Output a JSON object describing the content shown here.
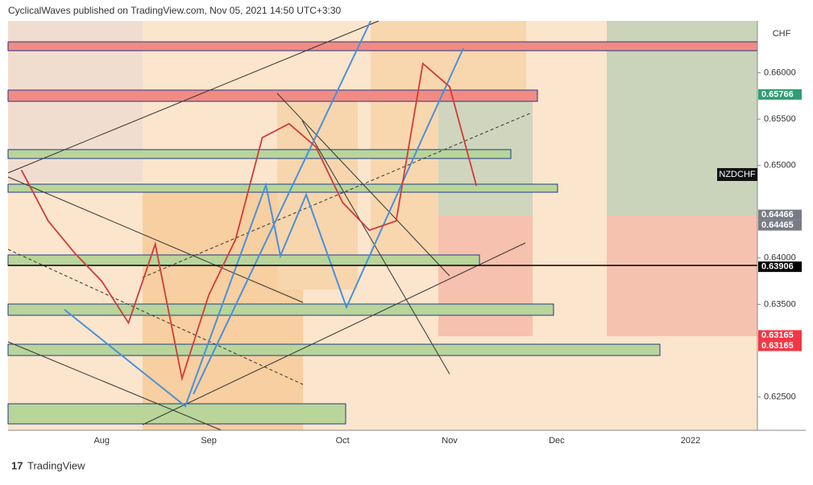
{
  "header": "CyclicalWaves published on TradingView.com, Nov 05, 2021 14:50 UTC+3:30",
  "footer": "TradingView",
  "chart_data": {
    "type": "line",
    "symbol": "NZDCHF",
    "currency": "CHF",
    "categories": [
      null,
      null,
      null,
      "Aug",
      null,
      null,
      null,
      "Sep",
      null,
      null,
      null,
      null,
      "Oct",
      null,
      null,
      null,
      "Nov",
      null,
      null,
      null,
      "Dec",
      null,
      null,
      null,
      null,
      "2022",
      null,
      null
    ],
    "series": [
      {
        "name": "NZDCHF",
        "color": "#d23a3a",
        "values": [
          0.6495,
          0.644,
          0.6405,
          0.6375,
          0.633,
          0.6415,
          0.627,
          0.636,
          0.642,
          0.653,
          0.6545,
          0.652,
          0.646,
          0.643,
          0.644,
          0.661,
          0.6585,
          0.6478,
          null,
          null,
          null,
          null,
          null,
          null,
          null,
          null,
          null,
          null
        ]
      }
    ],
    "ylim": [
      0.6214,
      0.6656
    ],
    "yticks": [
      {
        "value": 0.625,
        "label": "0.62500"
      },
      {
        "value": 0.635,
        "label": "0.63500"
      },
      {
        "value": 0.64,
        "label": "0.64000"
      },
      {
        "value": 0.65,
        "label": "0.65000"
      },
      {
        "value": 0.655,
        "label": "0.65500"
      },
      {
        "value": 0.66,
        "label": "0.66000"
      }
    ],
    "price_labels": [
      {
        "value": 0.65766,
        "label": "0.65766",
        "color": "#2e9e74"
      },
      {
        "value": 0.64466,
        "label": "0.64466",
        "color": "#787b86"
      },
      {
        "value": 0.64465,
        "label": "0.64465",
        "color": "#787b86"
      },
      {
        "value": 0.63906,
        "label": "0.63906",
        "color": "#000000"
      },
      {
        "value": 0.63165,
        "label": "0.63165",
        "color": "#f23645"
      },
      {
        "value": 0.63165,
        "label": "0.63165",
        "color": "#f23645"
      }
    ]
  }
}
